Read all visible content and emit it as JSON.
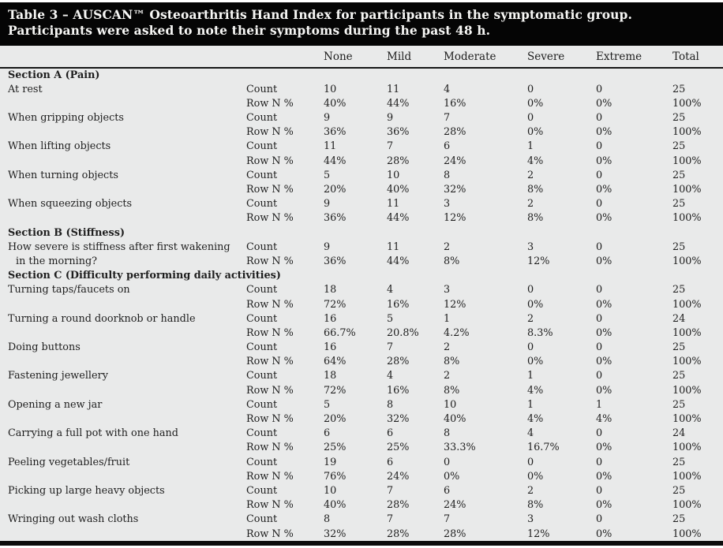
{
  "title": "Table 3 – AUSCAN™ Osteoarthritis Hand Index for participants in the symptomatic group. Participants were asked to note their symptoms during the past 48 h.",
  "columns": [
    "None",
    "Mild",
    "Moderate",
    "Severe",
    "Extreme",
    "Total"
  ],
  "measure_labels": {
    "count": "Count",
    "pct": "Row N %"
  },
  "sections": [
    {
      "heading": "Section A (Pain)",
      "items": [
        {
          "label": "At rest",
          "label_line2": "",
          "count": [
            "10",
            "11",
            "4",
            "0",
            "0",
            "25"
          ],
          "pct": [
            "40%",
            "44%",
            "16%",
            "0%",
            "0%",
            "100%"
          ]
        },
        {
          "label": "When gripping objects",
          "label_line2": "",
          "count": [
            "9",
            "9",
            "7",
            "0",
            "0",
            "25"
          ],
          "pct": [
            "36%",
            "36%",
            "28%",
            "0%",
            "0%",
            "100%"
          ]
        },
        {
          "label": "When lifting objects",
          "label_line2": "",
          "count": [
            "11",
            "7",
            "6",
            "1",
            "0",
            "25"
          ],
          "pct": [
            "44%",
            "28%",
            "24%",
            "4%",
            "0%",
            "100%"
          ]
        },
        {
          "label": "When turning objects",
          "label_line2": "",
          "count": [
            "5",
            "10",
            "8",
            "2",
            "0",
            "25"
          ],
          "pct": [
            "20%",
            "40%",
            "32%",
            "8%",
            "0%",
            "100%"
          ]
        },
        {
          "label": "When squeezing objects",
          "label_line2": "",
          "count": [
            "9",
            "11",
            "3",
            "2",
            "0",
            "25"
          ],
          "pct": [
            "36%",
            "44%",
            "12%",
            "8%",
            "0%",
            "100%"
          ]
        }
      ]
    },
    {
      "heading": "Section B (Stiffness)",
      "items": [
        {
          "label": "How severe is stiffness after first wakening",
          "label_line2": "in the morning?",
          "count": [
            "9",
            "11",
            "2",
            "3",
            "0",
            "25"
          ],
          "pct": [
            "36%",
            "44%",
            "8%",
            "12%",
            "0%",
            "100%"
          ]
        }
      ]
    },
    {
      "heading": "Section C (Difficulty performing daily activities)",
      "items": [
        {
          "label": "Turning taps/faucets on",
          "label_line2": "",
          "count": [
            "18",
            "4",
            "3",
            "0",
            "0",
            "25"
          ],
          "pct": [
            "72%",
            "16%",
            "12%",
            "0%",
            "0%",
            "100%"
          ]
        },
        {
          "label": "Turning a round doorknob or handle",
          "label_line2": "",
          "count": [
            "16",
            "5",
            "1",
            "2",
            "0",
            "24"
          ],
          "pct": [
            "66.7%",
            "20.8%",
            "4.2%",
            "8.3%",
            "0%",
            "100%"
          ]
        },
        {
          "label": "Doing buttons",
          "label_line2": "",
          "count": [
            "16",
            "7",
            "2",
            "0",
            "0",
            "25"
          ],
          "pct": [
            "64%",
            "28%",
            "8%",
            "0%",
            "0%",
            "100%"
          ]
        },
        {
          "label": "Fastening jewellery",
          "label_line2": "",
          "count": [
            "18",
            "4",
            "2",
            "1",
            "0",
            "25"
          ],
          "pct": [
            "72%",
            "16%",
            "8%",
            "4%",
            "0%",
            "100%"
          ]
        },
        {
          "label": "Opening a new jar",
          "label_line2": "",
          "count": [
            "5",
            "8",
            "10",
            "1",
            "1",
            "25"
          ],
          "pct": [
            "20%",
            "32%",
            "40%",
            "4%",
            "4%",
            "100%"
          ]
        },
        {
          "label": "Carrying a full pot with one hand",
          "label_line2": "",
          "count": [
            "6",
            "6",
            "8",
            "4",
            "0",
            "24"
          ],
          "pct": [
            "25%",
            "25%",
            "33.3%",
            "16.7%",
            "0%",
            "100%"
          ]
        },
        {
          "label": "Peeling vegetables/fruit",
          "label_line2": "",
          "count": [
            "19",
            "6",
            "0",
            "0",
            "0",
            "25"
          ],
          "pct": [
            "76%",
            "24%",
            "0%",
            "0%",
            "0%",
            "100%"
          ]
        },
        {
          "label": "Picking up large heavy objects",
          "label_line2": "",
          "count": [
            "10",
            "7",
            "6",
            "2",
            "0",
            "25"
          ],
          "pct": [
            "40%",
            "28%",
            "24%",
            "8%",
            "0%",
            "100%"
          ]
        },
        {
          "label": "Wringing out wash cloths",
          "label_line2": "",
          "count": [
            "8",
            "7",
            "7",
            "3",
            "0",
            "25"
          ],
          "pct": [
            "32%",
            "28%",
            "28%",
            "12%",
            "0%",
            "100%"
          ]
        }
      ]
    }
  ]
}
